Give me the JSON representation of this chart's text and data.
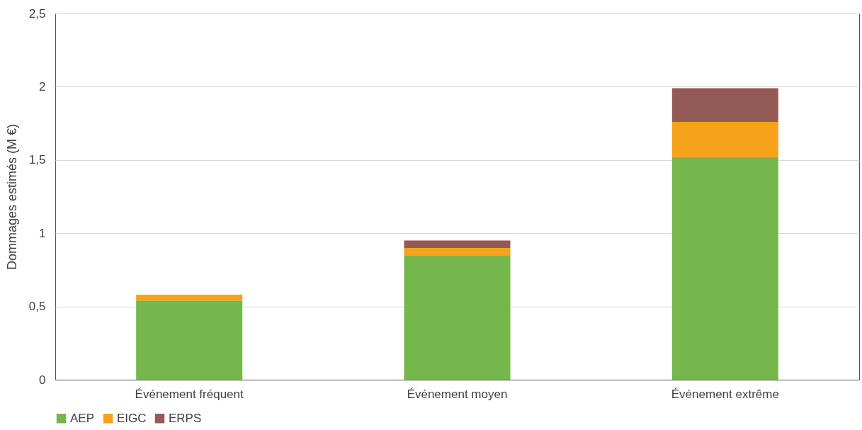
{
  "chart_data": {
    "type": "bar",
    "stacked": true,
    "ylabel": "Dommages estimés (M €)",
    "categories": [
      "Événement fréquent",
      "Événement moyen",
      "Événement extrême"
    ],
    "series": [
      {
        "name": "AEP",
        "color": "#76b74b",
        "values": [
          0.54,
          0.85,
          1.52
        ]
      },
      {
        "name": "EIGC",
        "color": "#f7a21b",
        "values": [
          0.04,
          0.05,
          0.24
        ]
      },
      {
        "name": "ERPS",
        "color": "#945a56",
        "values": [
          null,
          0.05,
          0.23
        ]
      }
    ],
    "ylim": [
      0,
      2.5
    ],
    "yticks": [
      0,
      {
        "value": 0.5,
        "label": "0,5"
      },
      1,
      {
        "value": 1.5,
        "label": "1,5"
      },
      2,
      {
        "value": 2.5,
        "label": "2,5"
      }
    ],
    "grid": "y",
    "legend": "bottom"
  }
}
